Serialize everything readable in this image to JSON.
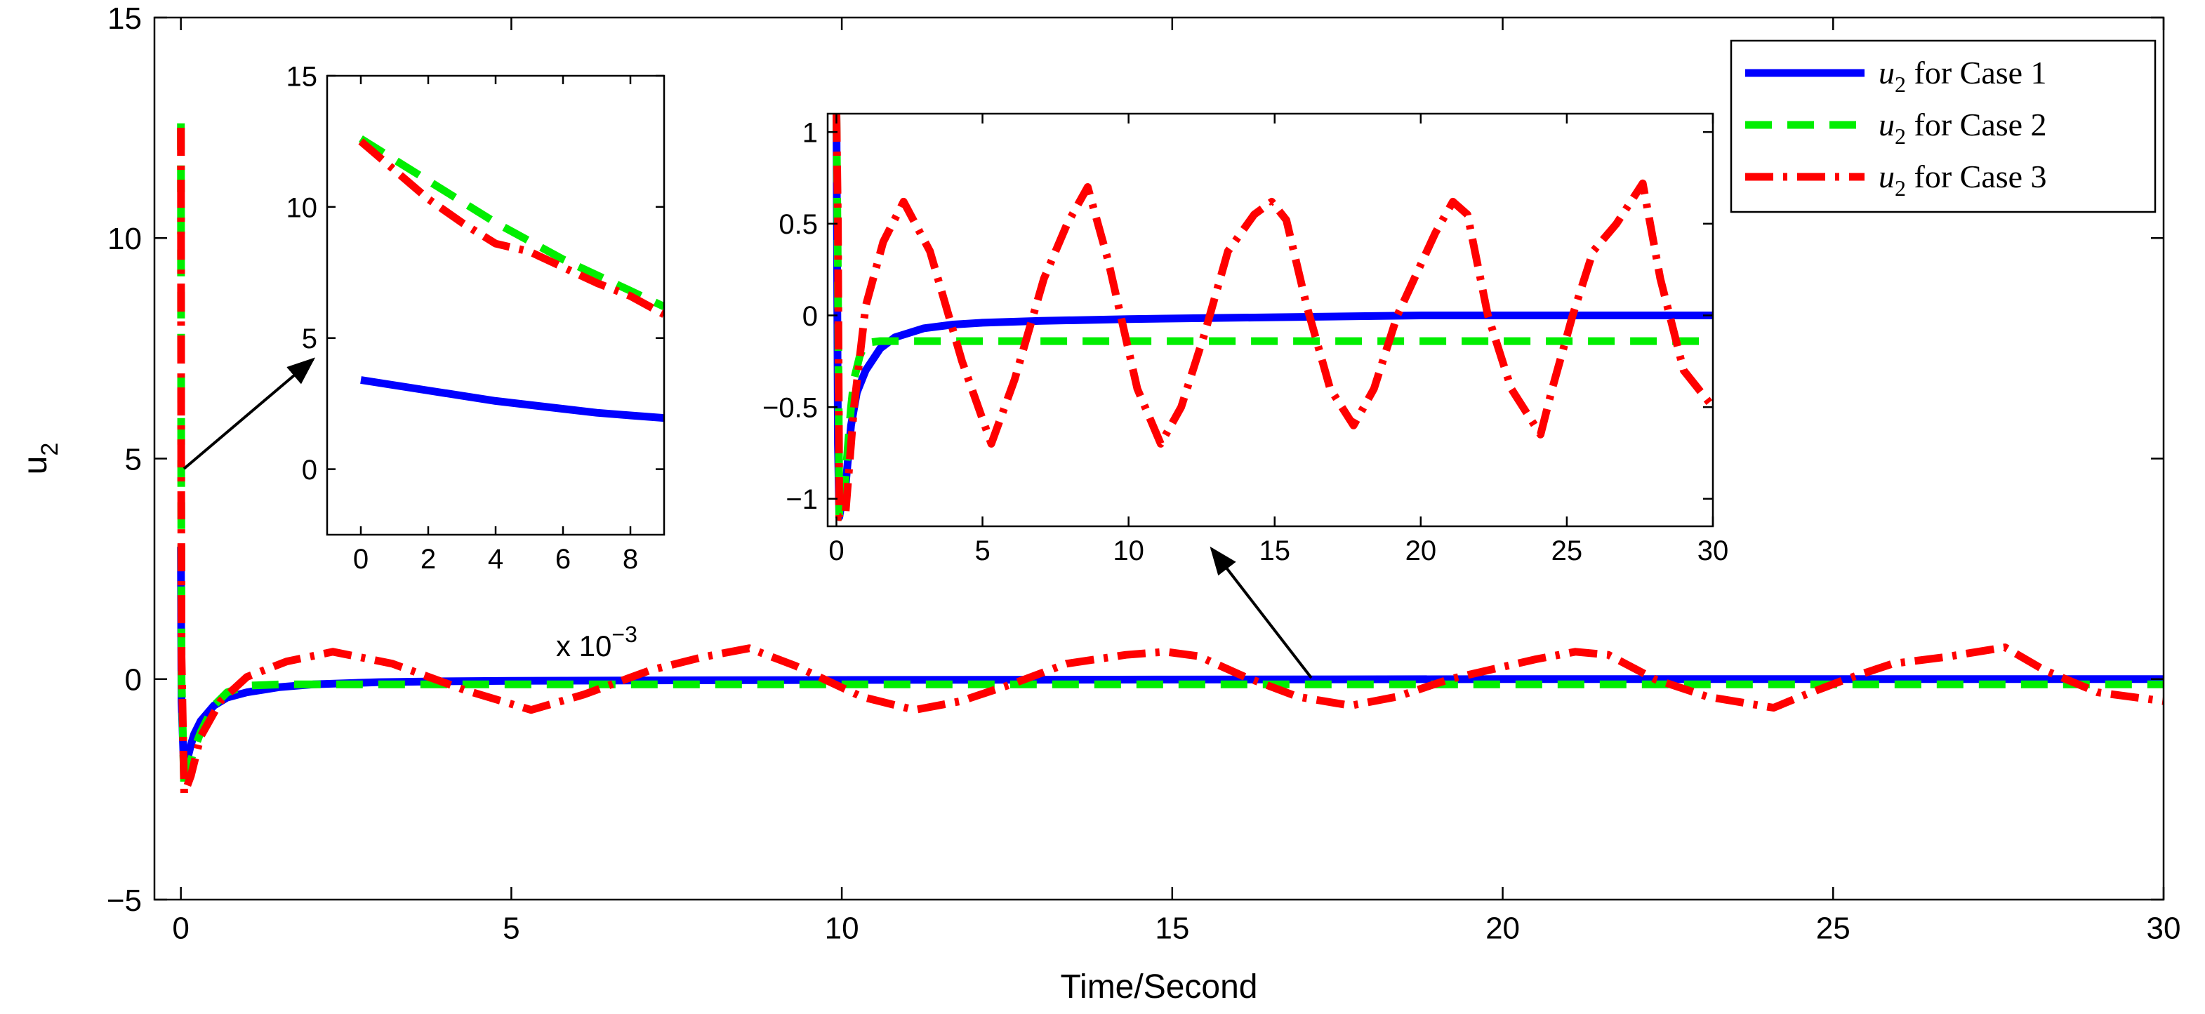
{
  "colors": {
    "case1": "#0000ff",
    "case2": "#00ee00",
    "case3": "#ff0000",
    "axis": "#000000",
    "background": "#ffffff"
  },
  "chart_data": [
    {
      "id": "main",
      "type": "line",
      "xlabel": "Time/Second",
      "ylabel": "u",
      "ylabel_sub": "2",
      "xlim": [
        -0.4,
        30
      ],
      "ylim": [
        -5,
        15
      ],
      "xticks": [
        0,
        5,
        10,
        15,
        20,
        25,
        30
      ],
      "yticks": [
        -5,
        0,
        5,
        10,
        15
      ],
      "xtick_labels": [
        "0",
        "5",
        "10",
        "15",
        "20",
        "25",
        "30"
      ],
      "ytick_labels": [
        "−5",
        "0",
        "5",
        "10",
        "15"
      ],
      "legend": {
        "position": "top-right",
        "entries": [
          {
            "italic": "u",
            "sub": "2",
            "text": " for Case 1",
            "series": "case1"
          },
          {
            "italic": "u",
            "sub": "2",
            "text": " for Case 2",
            "series": "case2"
          },
          {
            "italic": "u",
            "sub": "2",
            "text": " for Case 3",
            "series": "case3"
          }
        ]
      },
      "series": [
        {
          "name": "u2 for Case 1",
          "key": "case1",
          "style": "solid",
          "x": [
            0,
            0.001,
            0.005,
            0.01,
            0.05,
            0.1,
            0.15,
            0.2,
            0.3,
            0.5,
            0.7,
            1,
            1.5,
            2,
            3,
            4,
            5,
            7,
            10,
            15,
            20,
            25,
            30
          ],
          "y": [
            3.0,
            2.5,
            1.0,
            -0.5,
            -2.2,
            -1.8,
            -1.5,
            -1.25,
            -0.95,
            -0.6,
            -0.42,
            -0.3,
            -0.18,
            -0.12,
            -0.07,
            -0.05,
            -0.04,
            -0.03,
            -0.02,
            -0.01,
            0.0,
            0.0,
            0.0
          ]
        },
        {
          "name": "u2 for Case 2",
          "key": "case2",
          "style": "dashed",
          "x": [
            0,
            0.001,
            0.005,
            0.01,
            0.05,
            0.1,
            0.2,
            0.3,
            0.5,
            0.7,
            1,
            1.5,
            2,
            5,
            10,
            15,
            20,
            25,
            30
          ],
          "y": [
            12.6,
            11.0,
            5.0,
            0.0,
            -2.5,
            -2.1,
            -1.6,
            -1.2,
            -0.6,
            -0.3,
            -0.15,
            -0.12,
            -0.12,
            -0.12,
            -0.12,
            -0.12,
            -0.12,
            -0.12,
            -0.12
          ]
        },
        {
          "name": "u2 for Case 3",
          "key": "case3",
          "style": "dashdot",
          "x": [
            0,
            0.001,
            0.005,
            0.01,
            0.05,
            0.15,
            0.3,
            0.6,
            1.0,
            1.6,
            2.3,
            3.2,
            4.3,
            5.3,
            6.1,
            7.1,
            7.9,
            8.6,
            9.3,
            10.3,
            11.1,
            11.8,
            12.6,
            13.4,
            14.3,
            14.9,
            15.4,
            16.1,
            16.9,
            17.7,
            18.4,
            19.2,
            20.5,
            21.1,
            21.6,
            22.3,
            23.1,
            24.1,
            24.5,
            25.2,
            25.9,
            26.7,
            27.6,
            28.2,
            29.0,
            30.0
          ],
          "y": [
            12.5,
            11.5,
            4.8,
            0.5,
            -2.6,
            -2.2,
            -1.3,
            -0.5,
            0.05,
            0.4,
            0.62,
            0.35,
            -0.25,
            -0.7,
            -0.35,
            0.2,
            0.5,
            0.7,
            0.3,
            -0.4,
            -0.7,
            -0.5,
            -0.1,
            0.35,
            0.55,
            0.62,
            0.52,
            0.05,
            -0.4,
            -0.6,
            -0.4,
            0.0,
            0.45,
            0.62,
            0.55,
            0.0,
            -0.4,
            -0.65,
            -0.4,
            0.0,
            0.35,
            0.5,
            0.72,
            0.2,
            -0.3,
            -0.5
          ]
        }
      ]
    },
    {
      "id": "inset-left",
      "type": "line",
      "xlim": [
        -1,
        9
      ],
      "ylim": [
        -2.5,
        15
      ],
      "xticks": [
        0,
        2,
        4,
        6,
        8
      ],
      "yticks": [
        0,
        5,
        10,
        15
      ],
      "xtick_labels": [
        "0",
        "2",
        "4",
        "6",
        "8"
      ],
      "ytick_labels": [
        "0",
        "5",
        "10",
        "15"
      ],
      "x_multiplier": {
        "base": "x 10",
        "exp": "−3"
      },
      "series": [
        {
          "name": "u2 for Case 1",
          "key": "case1",
          "style": "solid",
          "x": [
            0,
            1,
            2,
            3,
            4,
            5,
            6,
            7,
            8,
            9
          ],
          "y": [
            3.4,
            3.2,
            3.0,
            2.8,
            2.6,
            2.45,
            2.3,
            2.15,
            2.05,
            1.95
          ]
        },
        {
          "name": "u2 for Case 2",
          "key": "case2",
          "style": "dashed",
          "x": [
            0,
            1,
            2,
            3,
            4,
            5,
            6,
            7,
            8,
            9
          ],
          "y": [
            12.6,
            11.8,
            11.0,
            10.2,
            9.4,
            8.7,
            8.0,
            7.4,
            6.8,
            6.2
          ]
        },
        {
          "name": "u2 for Case 3",
          "key": "case3",
          "style": "dashdot",
          "x": [
            0,
            1,
            2,
            3,
            4,
            5,
            6,
            7,
            8,
            9
          ],
          "y": [
            12.5,
            11.4,
            10.3,
            9.4,
            8.6,
            8.3,
            7.7,
            7.1,
            6.6,
            5.9
          ]
        }
      ]
    },
    {
      "id": "inset-right",
      "type": "line",
      "xlim": [
        -0.3,
        30
      ],
      "ylim": [
        -1.15,
        1.1
      ],
      "xticks": [
        0,
        5,
        10,
        15,
        20,
        25,
        30
      ],
      "yticks": [
        -1,
        -0.5,
        0,
        0.5,
        1
      ],
      "xtick_labels": [
        "0",
        "5",
        "10",
        "15",
        "20",
        "25",
        "30"
      ],
      "ytick_labels": [
        "−1",
        "−0.5",
        "0",
        "0.5",
        "1"
      ],
      "series": [
        {
          "name": "u2 for Case 1",
          "key": "case1",
          "style": "solid",
          "x": [
            0,
            0.05,
            0.1,
            0.2,
            0.3,
            0.5,
            0.7,
            1,
            1.5,
            2,
            3,
            4,
            5,
            7,
            10,
            15,
            20,
            25,
            30
          ],
          "y": [
            1.1,
            -0.7,
            -1.1,
            -1.0,
            -0.95,
            -0.6,
            -0.42,
            -0.3,
            -0.18,
            -0.12,
            -0.07,
            -0.05,
            -0.04,
            -0.03,
            -0.02,
            -0.01,
            0.0,
            0.0,
            0.0
          ]
        },
        {
          "name": "u2 for Case 2",
          "key": "case2",
          "style": "dashed",
          "x": [
            0,
            0.05,
            0.1,
            0.2,
            0.3,
            0.4,
            0.5,
            0.6,
            0.8,
            1.0,
            1.5,
            2,
            5,
            10,
            15,
            20,
            25,
            30
          ],
          "y": [
            1.1,
            0.2,
            -1.1,
            -1.1,
            -0.9,
            -0.7,
            -0.5,
            -0.35,
            -0.22,
            -0.15,
            -0.14,
            -0.14,
            -0.14,
            -0.14,
            -0.14,
            -0.14,
            -0.14,
            -0.14
          ]
        },
        {
          "name": "u2 for Case 3",
          "key": "case3",
          "style": "dashdot",
          "x": [
            0,
            0.05,
            0.1,
            0.3,
            0.6,
            1.0,
            1.6,
            2.3,
            3.2,
            4.3,
            5.3,
            6.1,
            7.1,
            7.9,
            8.6,
            9.3,
            10.3,
            11.1,
            11.8,
            12.6,
            13.4,
            14.3,
            14.9,
            15.4,
            16.1,
            16.9,
            17.7,
            18.4,
            19.2,
            20.5,
            21.1,
            21.6,
            22.3,
            23.1,
            24.1,
            24.5,
            25.2,
            25.9,
            26.7,
            27.6,
            28.2,
            29.0,
            30.0
          ],
          "y": [
            1.1,
            0.5,
            -1.1,
            -1.1,
            -0.5,
            0.05,
            0.4,
            0.62,
            0.35,
            -0.25,
            -0.7,
            -0.35,
            0.2,
            0.5,
            0.7,
            0.3,
            -0.4,
            -0.7,
            -0.5,
            -0.1,
            0.35,
            0.55,
            0.62,
            0.52,
            0.05,
            -0.4,
            -0.6,
            -0.4,
            0.0,
            0.45,
            0.62,
            0.55,
            0.0,
            -0.4,
            -0.65,
            -0.4,
            0.0,
            0.35,
            0.5,
            0.72,
            0.2,
            -0.3,
            -0.5
          ]
        }
      ]
    }
  ]
}
